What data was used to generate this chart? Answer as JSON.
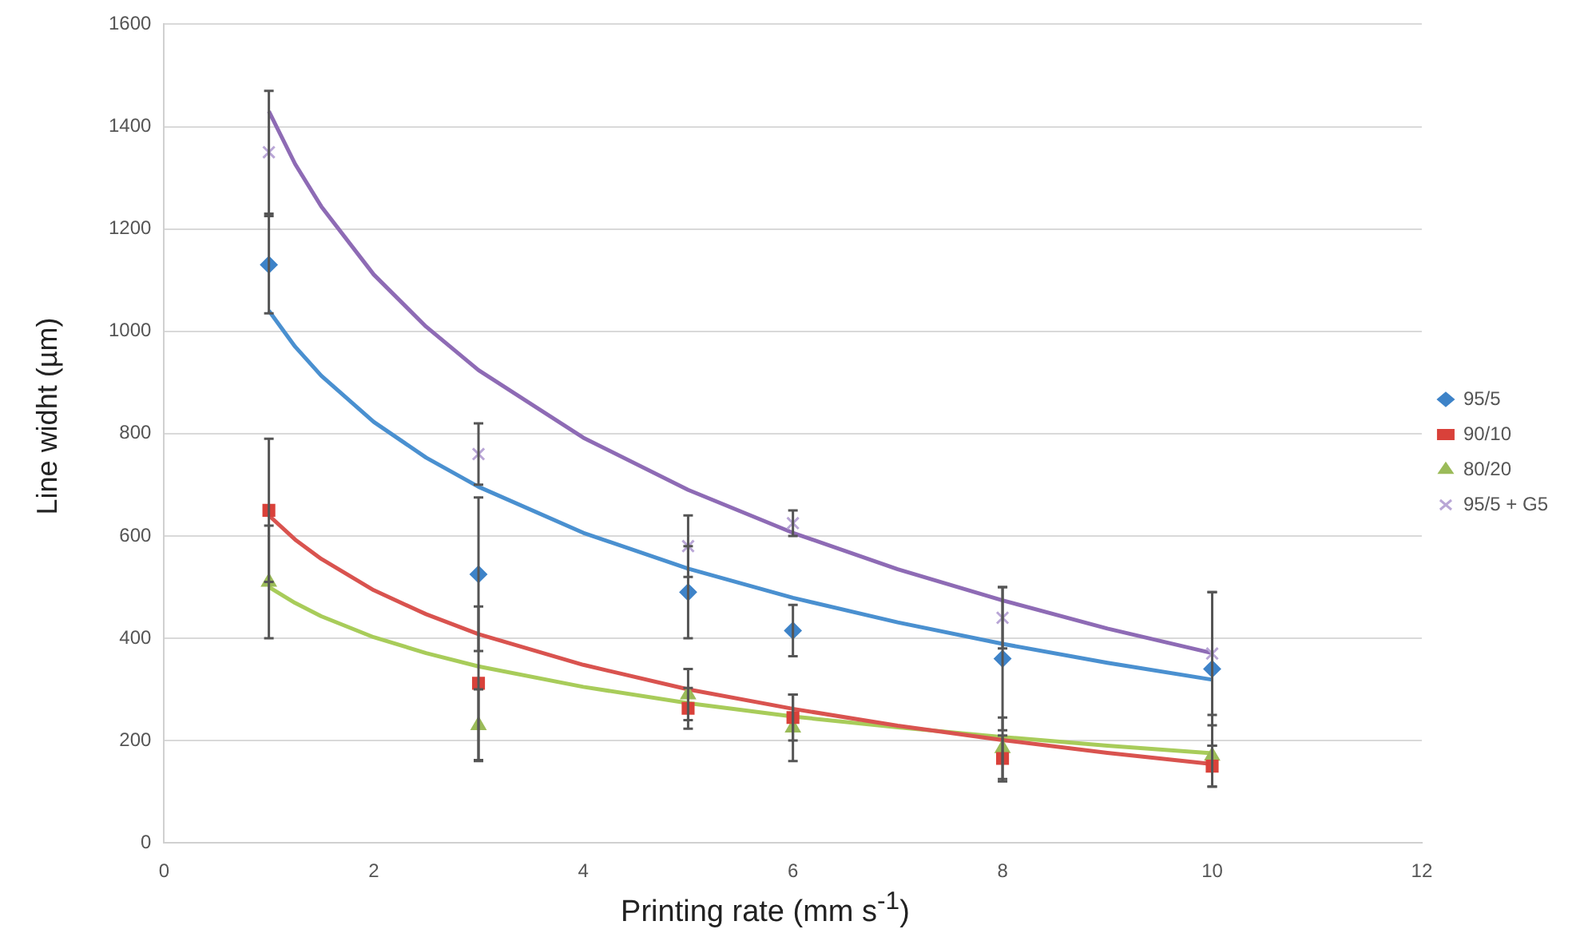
{
  "chart_data": {
    "type": "scatter",
    "xlabel": "Printing rate (mm s$^{-1}$)",
    "ylabel": "Line widht (µm)",
    "xlim": [
      0,
      12
    ],
    "xticks": [
      0,
      2,
      4,
      6,
      8,
      10,
      12
    ],
    "ylim": [
      0,
      1600
    ],
    "yticks": [
      0,
      200,
      400,
      600,
      800,
      1000,
      1200,
      1400,
      1600
    ],
    "grid": "y",
    "legend": "right",
    "series": [
      {
        "name": "95/5",
        "marker": "diamond",
        "color": "#3e83c8",
        "x": [
          1,
          3,
          5,
          6,
          8,
          10
        ],
        "values": [
          1130,
          525,
          490,
          415,
          360,
          340
        ],
        "errors": [
          95,
          150,
          90,
          50,
          140,
          150
        ]
      },
      {
        "name": "90/10",
        "marker": "square",
        "color": "#d9413a",
        "x": [
          1,
          3,
          5,
          6,
          8,
          10
        ],
        "values": [
          650,
          312,
          263,
          245,
          165,
          150
        ],
        "errors": [
          140,
          150,
          40,
          45,
          45,
          40
        ]
      },
      {
        "name": "80/20",
        "marker": "triangle",
        "color": "#9bbb59",
        "x": [
          1,
          3,
          5,
          6,
          8,
          10
        ],
        "values": [
          510,
          230,
          290,
          225,
          185,
          170
        ],
        "errors": [
          110,
          70,
          50,
          65,
          60,
          60
        ]
      },
      {
        "name": "95/5 + G5",
        "marker": "cross",
        "color": "#b9a6d6",
        "x": [
          1,
          3,
          5,
          6,
          8,
          10
        ],
        "values": [
          1350,
          760,
          580,
          625,
          440,
          370
        ],
        "errors": [
          120,
          60,
          60,
          25,
          60,
          120
        ]
      },
      {
        "type": "line",
        "marker": "none",
        "color": "#8e6bb5",
        "x": [
          1,
          1.25,
          1.5,
          2,
          2.5,
          3,
          4,
          5,
          6,
          7,
          8,
          9,
          10
        ],
        "values": [
          1430,
          1327,
          1244,
          1111,
          1009,
          924,
          792,
          690,
          606,
          535,
          474,
          419,
          371
        ]
      },
      {
        "type": "line",
        "marker": "none",
        "color": "#4a90d0",
        "x": [
          1,
          1.25,
          1.5,
          2,
          2.5,
          3,
          4,
          5,
          6,
          7,
          8,
          9,
          10
        ],
        "values": [
          1040,
          970,
          913,
          823,
          753,
          696,
          606,
          536,
          479,
          431,
          389,
          352,
          319
        ]
      },
      {
        "type": "line",
        "marker": "none",
        "color": "#d9534f",
        "x": [
          1,
          1.25,
          1.5,
          2,
          2.5,
          3,
          4,
          5,
          6,
          7,
          8,
          9,
          10
        ],
        "values": [
          640,
          593,
          555,
          494,
          447,
          408,
          348,
          300,
          262,
          229,
          201,
          176,
          154
        ]
      },
      {
        "type": "line",
        "marker": "none",
        "color": "#a8cc5a",
        "x": [
          1,
          1.25,
          1.5,
          2,
          2.5,
          3,
          4,
          5,
          6,
          7,
          8,
          9,
          10
        ],
        "values": [
          500,
          469,
          443,
          402,
          371,
          345,
          305,
          273,
          247,
          226,
          207,
          190,
          175
        ]
      }
    ]
  }
}
